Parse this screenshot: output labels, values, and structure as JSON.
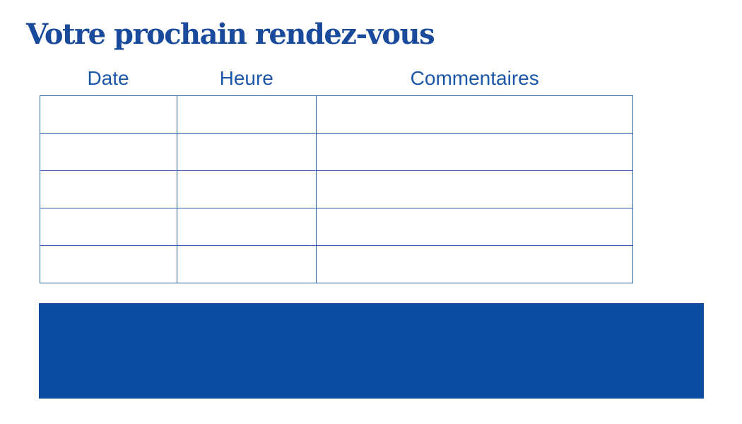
{
  "page": {
    "title": "Votre prochain rendez-vous"
  },
  "table": {
    "columns": [
      {
        "key": "date",
        "label": "Date"
      },
      {
        "key": "heure",
        "label": "Heure"
      },
      {
        "key": "commentaires",
        "label": "Commentaires"
      }
    ],
    "rows": [
      {
        "date": "",
        "heure": "",
        "commentaires": ""
      },
      {
        "date": "",
        "heure": "",
        "commentaires": ""
      },
      {
        "date": "",
        "heure": "",
        "commentaires": ""
      },
      {
        "date": "",
        "heure": "",
        "commentaires": ""
      },
      {
        "date": "",
        "heure": "",
        "commentaires": ""
      }
    ]
  },
  "colors": {
    "title_color": "#1a4a9c",
    "header_color": "#1c57a9",
    "border_color": "#2c5dab",
    "banner_color": "#0d4da1"
  }
}
